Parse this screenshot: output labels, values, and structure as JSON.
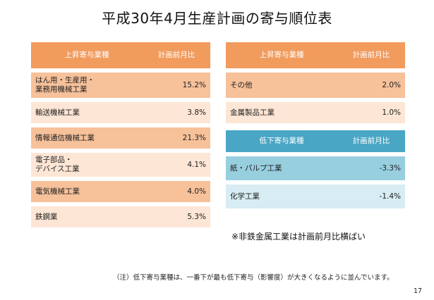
{
  "title": "平成30年4月生産計画の寄与順位表",
  "left_table": {
    "header": {
      "industry": "上昇寄与業種",
      "ratio": "計画前月比"
    },
    "rows": [
      {
        "industry": "はん用・生産用・\n業務用機械工業",
        "value": "15.2%"
      },
      {
        "industry": "輸送機械工業",
        "value": "3.8%"
      },
      {
        "industry": "情報通信機械工業",
        "value": "21.3%"
      },
      {
        "industry": "電子部品・\nデバイス工業",
        "value": "4.1%"
      },
      {
        "industry": "電気機械工業",
        "value": "4.0%"
      },
      {
        "industry": "鉄鋼業",
        "value": "5.3%"
      }
    ]
  },
  "right_up_table": {
    "header": {
      "industry": "上昇寄与業種",
      "ratio": "計画前月比"
    },
    "rows": [
      {
        "industry": "その他",
        "value": "2.0%"
      },
      {
        "industry": "金属製品工業",
        "value": "1.0%"
      }
    ]
  },
  "right_down_table": {
    "header": {
      "industry": "低下寄与業種",
      "ratio": "計画前月比"
    },
    "rows": [
      {
        "industry": "紙・パルプ工業",
        "value": "-3.3%"
      },
      {
        "industry": "化学工業",
        "value": "-1.4%"
      }
    ]
  },
  "note": "※非鉄金属工業は計画前月比横ばい",
  "footnote": "（注）低下寄与業種は、一番下が最も低下寄与（影響度）が大きくなるように並んでいます。",
  "page_number": "17"
}
